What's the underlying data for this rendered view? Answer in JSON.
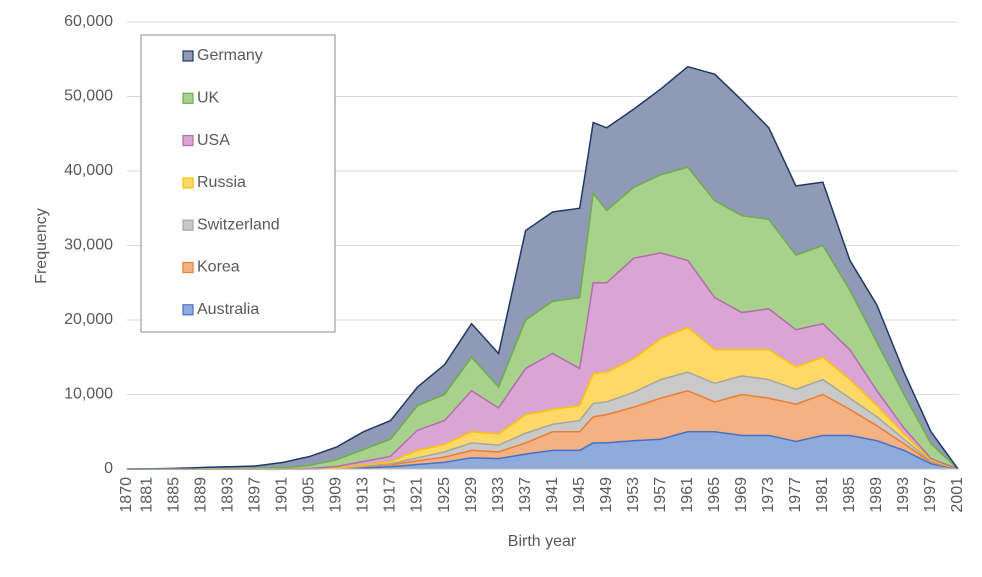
{
  "chart_data": {
    "type": "stacked_area",
    "x_label": "Birth year",
    "y_label": "Frequency",
    "categories": [
      "1870",
      null,
      null,
      "1881",
      null,
      null,
      null,
      "1885",
      null,
      null,
      null,
      "1889",
      null,
      null,
      null,
      "1893",
      null,
      null,
      null,
      "1897",
      null,
      null,
      null,
      "1901",
      null,
      null,
      null,
      "1905",
      null,
      null,
      null,
      "1909",
      null,
      null,
      null,
      "1913",
      null,
      null,
      null,
      "1917",
      null,
      null,
      null,
      "1921",
      null,
      null,
      null,
      "1925",
      null,
      null,
      null,
      "1929",
      null,
      null,
      null,
      "1933",
      null,
      null,
      null,
      "1937",
      null,
      null,
      null,
      "1941",
      null,
      null,
      null,
      "1945",
      null,
      null,
      null,
      "1949",
      null,
      null,
      null,
      "1953",
      null,
      null,
      null,
      "1957",
      null,
      null,
      null,
      "1961",
      null,
      null,
      null,
      "1965",
      null,
      null,
      null,
      "1969",
      null,
      null,
      null,
      "1973",
      null,
      null,
      null,
      "1977",
      null,
      null,
      null,
      "1981",
      null,
      null,
      null,
      "1985",
      null,
      null,
      null,
      "1989",
      null,
      null,
      null,
      "1993",
      null,
      null,
      null,
      "1997",
      null,
      null,
      null,
      "2001"
    ],
    "ylim": [
      0,
      60000
    ],
    "yticks": [
      0,
      {
        "value": 10000,
        "label": "10,000"
      },
      {
        "value": 20000,
        "label": "20,000"
      },
      {
        "value": 30000,
        "label": "30,000"
      },
      {
        "value": 40000,
        "label": "40,000"
      },
      {
        "value": 50000,
        "label": "50,000"
      },
      {
        "value": 60000,
        "label": "60,000"
      }
    ],
    "grid": true,
    "legend": "upper left",
    "series": [
      {
        "name": "Australia",
        "color": "#8faadc",
        "line_color": "#4472c4",
        "values": [
          0,
          0,
          0,
          0,
          0,
          0,
          0,
          0,
          0,
          0,
          0,
          0,
          0,
          0,
          0,
          0,
          0,
          0,
          0,
          0,
          0,
          0,
          0,
          0,
          0,
          5,
          8,
          10,
          20,
          30,
          40,
          50,
          75,
          100,
          125,
          150,
          190,
          225,
          260,
          300,
          375,
          450,
          525,
          600,
          675,
          750,
          825,
          900,
          1050,
          1200,
          1350,
          1500,
          1475,
          1450,
          1425,
          1400,
          1550,
          1700,
          1850,
          2000,
          2125,
          2250,
          2375,
          2500,
          2500,
          2500,
          2500,
          2500,
          3000,
          3500,
          3500,
          3500,
          3575,
          3650,
          3725,
          3800,
          3850,
          3900,
          3950,
          4000,
          4250,
          4500,
          4750,
          5000,
          5000,
          5000,
          5000,
          5000,
          4875,
          4750,
          4625,
          4500,
          4500,
          4500,
          4500,
          4500,
          4300,
          4100,
          3900,
          3700,
          3900,
          4100,
          4300,
          4500,
          4500,
          4500,
          4500,
          4500,
          4325,
          4150,
          3975,
          3800,
          3475,
          3150,
          2825,
          2500,
          2050,
          1600,
          1150,
          700,
          525,
          350,
          175,
          0
        ]
      },
      {
        "name": "Korea",
        "color": "#f4b183",
        "line_color": "#ed7d31",
        "values": [
          0,
          0,
          0,
          0,
          0,
          0,
          0,
          0,
          0,
          0,
          0,
          0,
          0,
          0,
          0,
          0,
          0,
          0,
          0,
          0,
          0,
          0,
          0,
          0,
          0,
          0,
          0,
          0,
          5,
          10,
          15,
          20,
          50,
          85,
          120,
          150,
          175,
          200,
          225,
          250,
          310,
          375,
          440,
          500,
          550,
          600,
          650,
          700,
          775,
          850,
          925,
          1000,
          975,
          950,
          925,
          900,
          1050,
          1200,
          1350,
          1500,
          1750,
          2000,
          2250,
          2500,
          2500,
          2500,
          2500,
          2500,
          3000,
          3500,
          3650,
          3800,
          3975,
          4150,
          4325,
          4500,
          4750,
          5000,
          5250,
          5500,
          5500,
          5500,
          5500,
          5500,
          5125,
          4750,
          4375,
          4000,
          4375,
          4750,
          5125,
          5500,
          5375,
          5250,
          5125,
          5000,
          5000,
          5000,
          5000,
          5000,
          5125,
          5250,
          5375,
          5500,
          5000,
          4500,
          4000,
          3500,
          3125,
          2750,
          2375,
          2000,
          1725,
          1450,
          1175,
          900,
          725,
          550,
          375,
          200,
          150,
          100,
          50,
          0
        ]
      },
      {
        "name": "Switzerland",
        "color": "#c9c9c9",
        "line_color": "#a5a5a5",
        "values": [
          0,
          0,
          0,
          0,
          0,
          0,
          0,
          0,
          0,
          0,
          0,
          0,
          0,
          0,
          0,
          0,
          0,
          0,
          0,
          0,
          0,
          0,
          0,
          0,
          0,
          0,
          0,
          0,
          5,
          10,
          15,
          20,
          28,
          35,
          43,
          50,
          75,
          100,
          125,
          150,
          210,
          275,
          340,
          400,
          475,
          550,
          625,
          700,
          775,
          850,
          925,
          1000,
          975,
          950,
          925,
          900,
          1000,
          1100,
          1200,
          1300,
          1225,
          1150,
          1075,
          1000,
          1125,
          1250,
          1375,
          1500,
          1650,
          1800,
          1750,
          1700,
          1775,
          1850,
          1925,
          2000,
          2125,
          2250,
          2375,
          2500,
          2500,
          2500,
          2500,
          2500,
          2500,
          2500,
          2500,
          2500,
          2500,
          2500,
          2500,
          2500,
          2500,
          2500,
          2500,
          2500,
          2375,
          2250,
          2125,
          2000,
          2000,
          2000,
          2000,
          2000,
          1875,
          1750,
          1625,
          1500,
          1425,
          1350,
          1275,
          1200,
          1050,
          900,
          750,
          600,
          490,
          375,
          260,
          150,
          110,
          75,
          40,
          0
        ]
      },
      {
        "name": "Russia",
        "color": "#ffd966",
        "line_color": "#ffc000",
        "values": [
          0,
          0,
          0,
          0,
          0,
          0,
          0,
          0,
          0,
          0,
          0,
          0,
          0,
          0,
          0,
          0,
          0,
          0,
          0,
          0,
          0,
          0,
          0,
          0,
          3,
          5,
          8,
          10,
          20,
          30,
          40,
          50,
          75,
          100,
          125,
          150,
          190,
          225,
          260,
          300,
          475,
          650,
          825,
          1000,
          1000,
          1000,
          1000,
          1000,
          1125,
          1250,
          1375,
          1500,
          1500,
          1500,
          1500,
          1500,
          1750,
          2000,
          2250,
          2500,
          2375,
          2250,
          2125,
          2000,
          2000,
          2000,
          2000,
          2000,
          3000,
          4000,
          4000,
          4000,
          4125,
          4250,
          4375,
          4500,
          4750,
          5000,
          5250,
          5500,
          5625,
          5750,
          5875,
          6000,
          5625,
          5250,
          4875,
          4500,
          4250,
          4000,
          3750,
          3500,
          3625,
          3750,
          3875,
          4000,
          3750,
          3500,
          3250,
          3000,
          3000,
          3000,
          3000,
          3000,
          2875,
          2750,
          2625,
          2500,
          2250,
          2000,
          1750,
          1500,
          1300,
          1100,
          900,
          700,
          560,
          425,
          290,
          150,
          110,
          75,
          40,
          0
        ]
      },
      {
        "name": "USA",
        "color": "#d9a6d4",
        "line_color": "#b46cac",
        "values": [
          0,
          0,
          0,
          0,
          0,
          0,
          0,
          0,
          0,
          0,
          0,
          0,
          0,
          0,
          0,
          0,
          0,
          0,
          0,
          10,
          13,
          15,
          18,
          20,
          28,
          35,
          43,
          50,
          90,
          125,
          160,
          200,
          275,
          350,
          425,
          500,
          550,
          600,
          650,
          700,
          1200,
          1700,
          2200,
          2700,
          2825,
          2950,
          3075,
          3200,
          3775,
          4350,
          4925,
          5500,
          5000,
          4500,
          4000,
          3500,
          4175,
          4850,
          5525,
          6200,
          6525,
          6850,
          7175,
          7500,
          6875,
          6250,
          5625,
          5000,
          8500,
          12200,
          12100,
          12000,
          12375,
          12750,
          13125,
          13500,
          13000,
          12500,
          12000,
          11500,
          10875,
          10250,
          9625,
          9000,
          8500,
          8000,
          7500,
          7000,
          6500,
          6000,
          5500,
          5000,
          5125,
          5250,
          5375,
          5500,
          5375,
          5250,
          5125,
          5000,
          4875,
          4750,
          4625,
          4500,
          4375,
          4250,
          4125,
          4000,
          3500,
          3000,
          2500,
          2000,
          1700,
          1400,
          1100,
          800,
          650,
          500,
          350,
          200,
          150,
          100,
          50,
          0
        ]
      },
      {
        "name": "UK",
        "color": "#a9d18e",
        "line_color": "#70ad47",
        "values": [
          0,
          0,
          0,
          0,
          0,
          0,
          0,
          0,
          5,
          10,
          15,
          20,
          23,
          25,
          28,
          30,
          35,
          40,
          45,
          50,
          75,
          100,
          125,
          150,
          210,
          275,
          340,
          400,
          525,
          650,
          775,
          900,
          1075,
          1250,
          1425,
          1600,
          1775,
          1950,
          2125,
          2300,
          2550,
          2800,
          3050,
          3300,
          3350,
          3400,
          3450,
          3500,
          3750,
          4000,
          4250,
          4500,
          4075,
          3650,
          3225,
          2800,
          3725,
          4650,
          5575,
          6500,
          6625,
          6750,
          6875,
          7000,
          7625,
          8250,
          8875,
          9500,
          10750,
          12000,
          10850,
          9700,
          9650,
          9600,
          9550,
          9500,
          9750,
          10000,
          10250,
          10500,
          11000,
          11500,
          12000,
          12500,
          12625,
          12750,
          12875,
          13000,
          13000,
          13000,
          13000,
          13000,
          12750,
          12500,
          12250,
          12000,
          11500,
          11000,
          10500,
          10000,
          10125,
          10250,
          10375,
          10500,
          9875,
          9250,
          8625,
          8000,
          7625,
          7250,
          6875,
          6500,
          6000,
          5500,
          5000,
          4500,
          3875,
          3250,
          2625,
          2000,
          1500,
          1000,
          500,
          0
        ]
      },
      {
        "name": "Germany",
        "color": "#8e9ab6",
        "line_color": "#203864",
        "values": [
          0,
          5,
          10,
          20,
          35,
          50,
          65,
          80,
          105,
          130,
          155,
          180,
          205,
          225,
          250,
          270,
          290,
          305,
          320,
          340,
          430,
          520,
          610,
          700,
          825,
          950,
          1075,
          1200,
          1325,
          1450,
          1575,
          1700,
          1875,
          2050,
          2225,
          2400,
          2425,
          2450,
          2475,
          2500,
          2500,
          2500,
          2500,
          2500,
          2875,
          3250,
          3625,
          4000,
          4125,
          4250,
          4375,
          4500,
          4500,
          4500,
          4500,
          4500,
          6375,
          8250,
          10125,
          12000,
          12000,
          12000,
          12000,
          12000,
          12000,
          12000,
          12000,
          12000,
          10750,
          9500,
          10300,
          11100,
          10950,
          10800,
          10650,
          10500,
          10750,
          11000,
          11250,
          11500,
          12000,
          12500,
          13000,
          13500,
          14375,
          15250,
          16125,
          17000,
          16625,
          16250,
          15875,
          15500,
          14700,
          13900,
          13100,
          12300,
          11550,
          10800,
          10050,
          9300,
          9100,
          8900,
          8700,
          8500,
          7375,
          6250,
          5125,
          4000,
          4250,
          4500,
          4750,
          5000,
          4500,
          4000,
          3500,
          3000,
          2650,
          2300,
          1950,
          1600,
          1200,
          800,
          400,
          0
        ]
      }
    ]
  }
}
